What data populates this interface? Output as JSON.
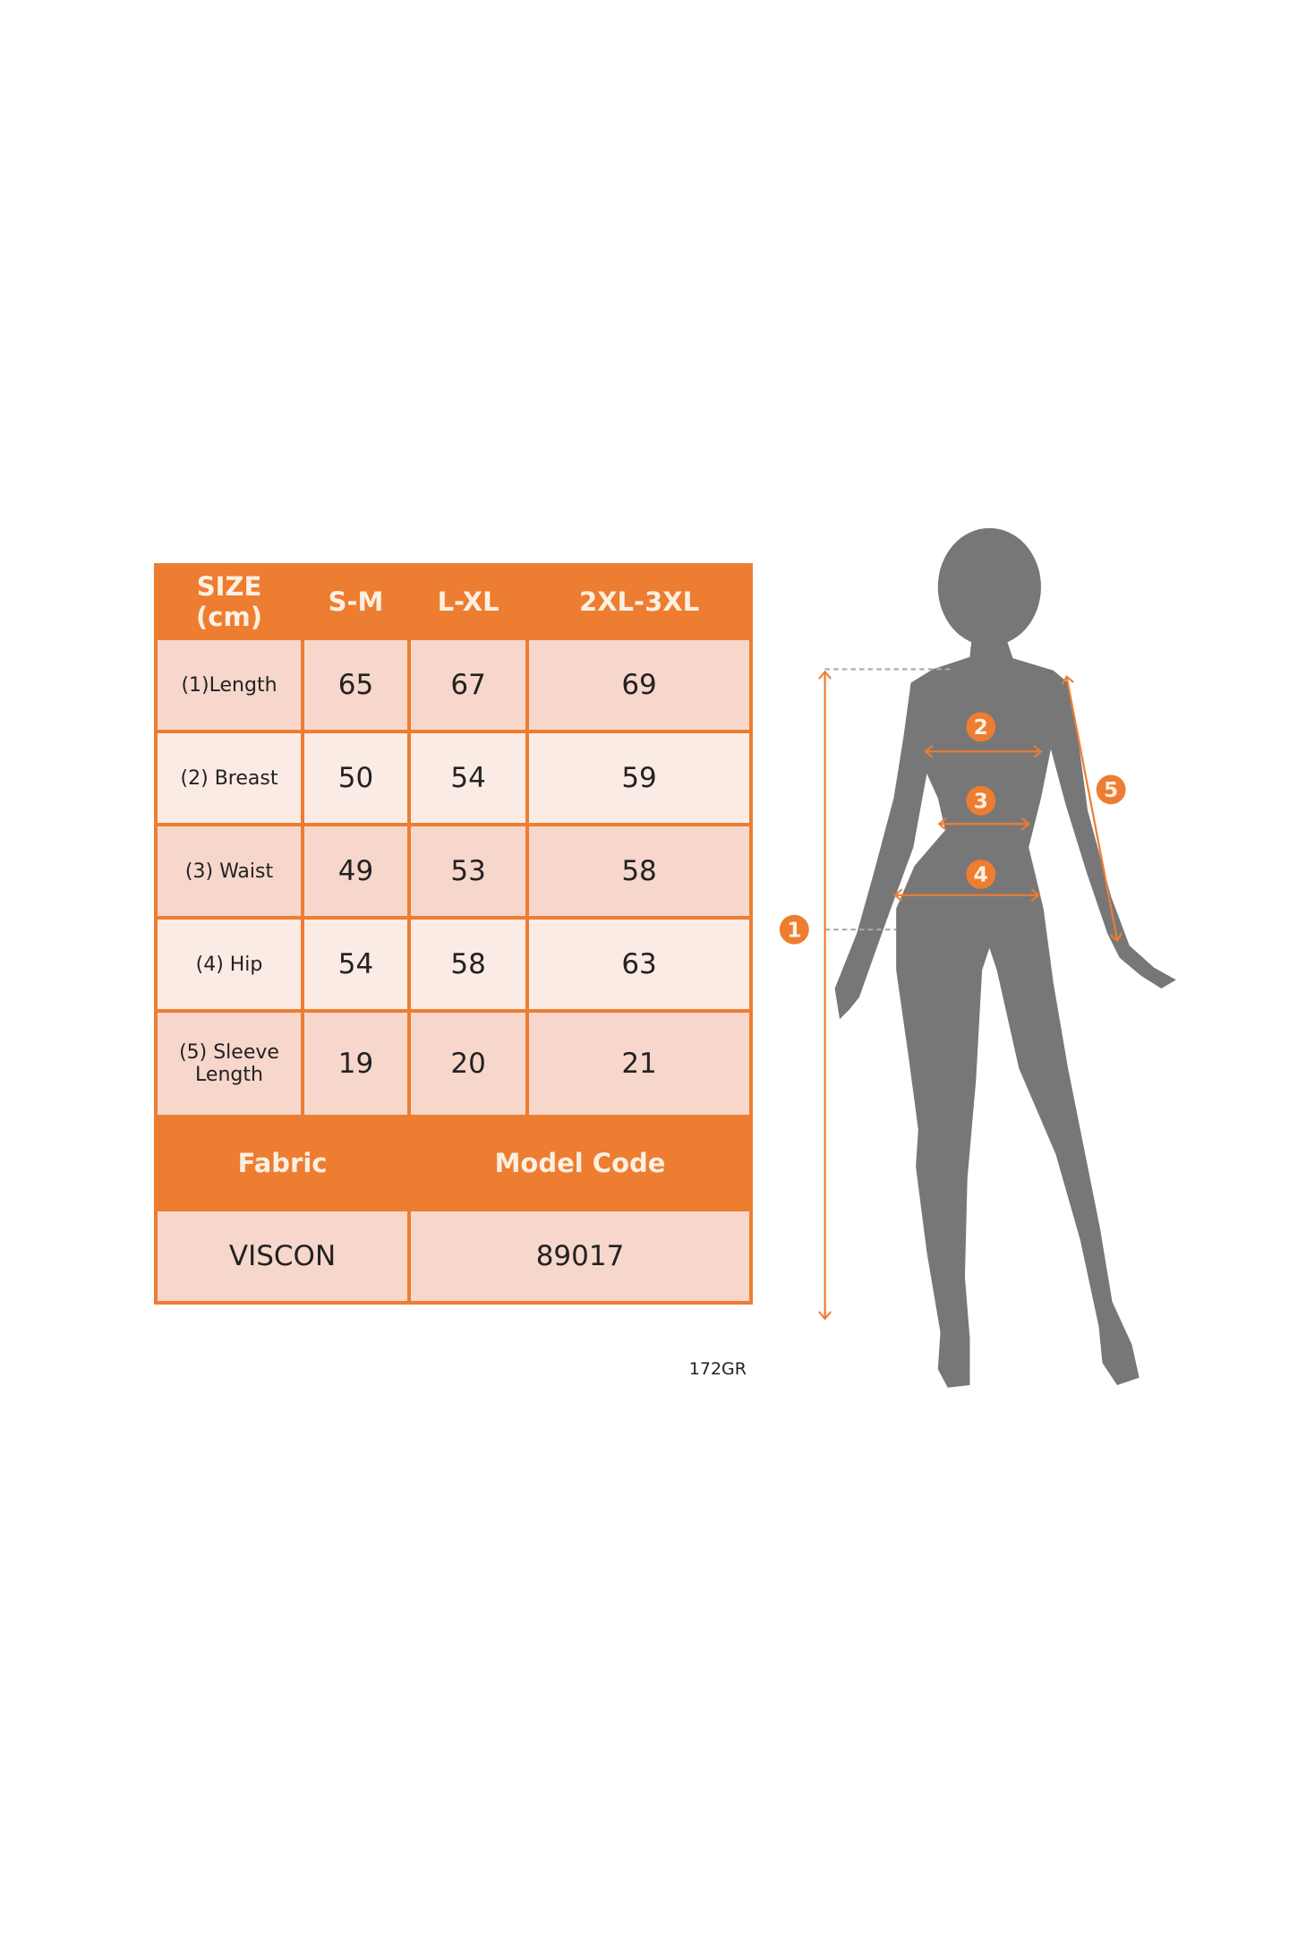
{
  "table": {
    "header": {
      "size_label": "SIZE",
      "unit_label": "(cm)",
      "sizes": [
        "S-M",
        "L-XL",
        "2XL-3XL"
      ]
    },
    "rows": [
      {
        "label": "(1)Length",
        "values": [
          "65",
          "67",
          "69"
        ]
      },
      {
        "label": "(2) Breast",
        "values": [
          "50",
          "54",
          "59"
        ]
      },
      {
        "label": "(3) Waist",
        "values": [
          "49",
          "53",
          "58"
        ]
      },
      {
        "label": "(4) Hip",
        "values": [
          "54",
          "58",
          "63"
        ]
      },
      {
        "label_line1": "(5) Sleeve",
        "label_line2": "Length",
        "values": [
          "19",
          "20",
          "21"
        ]
      }
    ],
    "footer": {
      "fabric_label": "Fabric",
      "model_code_label": "Model Code",
      "fabric_value": "VISCON",
      "model_code_value": "89017"
    }
  },
  "code_note": "172GR",
  "figure": {
    "markers": [
      "1",
      "2",
      "3",
      "4",
      "5"
    ],
    "colors": {
      "accent": "#ed7d31",
      "silhouette": "#777777",
      "cell_dark": "#f7d7cb",
      "cell_light": "#fbebe5"
    }
  }
}
